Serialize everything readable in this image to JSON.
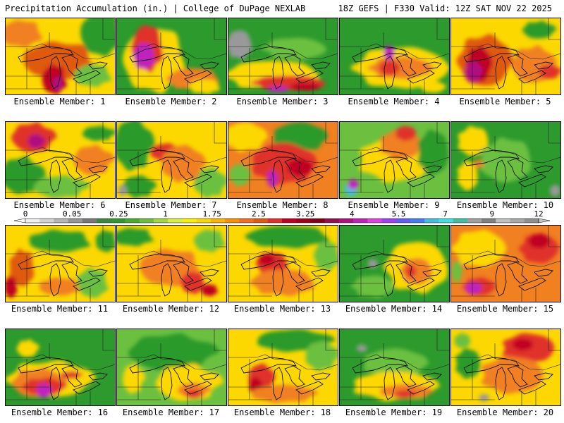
{
  "header": {
    "left": "Precipitation Accumulation (in.) | College of DuPage NEXLAB",
    "right": "18Z GEFS | F330 Valid: 12Z SAT NOV 22 2025"
  },
  "members": [
    {
      "label": "Ensemble Member: 1",
      "base": "#fcd800",
      "blobs": [
        [
          "#e05a10",
          0.5,
          0.55,
          0.35,
          0.25
        ],
        [
          "#c00020",
          0.45,
          0.8,
          0.12,
          0.2
        ],
        [
          "#b01080",
          0.48,
          0.86,
          0.05,
          0.1
        ],
        [
          "#2c9a2c",
          0.88,
          0.2,
          0.2,
          0.3
        ],
        [
          "#f08020",
          0.15,
          0.2,
          0.2,
          0.18
        ],
        [
          "#6cc040",
          0.8,
          0.75,
          0.18,
          0.15
        ]
      ]
    },
    {
      "label": "Ensemble Member: 2",
      "base": "#2c9a2c",
      "blobs": [
        [
          "#fcd800",
          0.35,
          0.55,
          0.3,
          0.45
        ],
        [
          "#e0302a",
          0.28,
          0.4,
          0.15,
          0.32
        ],
        [
          "#c020c0",
          0.25,
          0.5,
          0.1,
          0.18
        ],
        [
          "#f08020",
          0.7,
          0.8,
          0.25,
          0.15
        ],
        [
          "#fcd800",
          0.8,
          0.9,
          0.15,
          0.1
        ]
      ]
    },
    {
      "label": "Ensemble Member: 3",
      "base": "#2c9a2c",
      "blobs": [
        [
          "#999999",
          0.1,
          0.35,
          0.12,
          0.2
        ],
        [
          "#fcd800",
          0.4,
          0.75,
          0.45,
          0.2
        ],
        [
          "#e0302a",
          0.55,
          0.85,
          0.35,
          0.1
        ],
        [
          "#c00020",
          0.7,
          0.9,
          0.15,
          0.05
        ],
        [
          "#c020c0",
          0.45,
          0.93,
          0.1,
          0.04
        ],
        [
          "#6cc040",
          0.6,
          0.4,
          0.3,
          0.15
        ]
      ]
    },
    {
      "label": "Ensemble Member: 4",
      "base": "#2c9a2c",
      "blobs": [
        [
          "#fcd800",
          0.55,
          0.65,
          0.45,
          0.28
        ],
        [
          "#f08020",
          0.55,
          0.65,
          0.3,
          0.15
        ],
        [
          "#e0302a",
          0.45,
          0.65,
          0.1,
          0.1
        ],
        [
          "#c020c0",
          0.45,
          0.45,
          0.05,
          0.1
        ],
        [
          "#fcd800",
          0.85,
          0.9,
          0.12,
          0.08
        ]
      ]
    },
    {
      "label": "Ensemble Member: 5",
      "base": "#fcd800",
      "blobs": [
        [
          "#e05a10",
          0.3,
          0.55,
          0.25,
          0.35
        ],
        [
          "#c00020",
          0.25,
          0.6,
          0.12,
          0.25
        ],
        [
          "#b01080",
          0.2,
          0.7,
          0.08,
          0.15
        ],
        [
          "#f08020",
          0.75,
          0.6,
          0.2,
          0.25
        ],
        [
          "#2c9a2c",
          0.8,
          0.15,
          0.15,
          0.12
        ],
        [
          "#e0302a",
          0.9,
          0.7,
          0.1,
          0.1
        ]
      ]
    },
    {
      "label": "Ensemble Member: 6",
      "base": "#fcd800",
      "blobs": [
        [
          "#e0302a",
          0.25,
          0.2,
          0.2,
          0.2
        ],
        [
          "#b01080",
          0.28,
          0.25,
          0.08,
          0.1
        ],
        [
          "#2c9a2c",
          0.15,
          0.7,
          0.2,
          0.25
        ],
        [
          "#6cc040",
          0.5,
          0.85,
          0.25,
          0.15
        ],
        [
          "#f08020",
          0.8,
          0.5,
          0.18,
          0.2
        ],
        [
          "#2c9a2c",
          0.85,
          0.15,
          0.15,
          0.1
        ]
      ]
    },
    {
      "label": "Ensemble Member: 7",
      "base": "#fcd800",
      "blobs": [
        [
          "#2c9a2c",
          0.15,
          0.3,
          0.18,
          0.35
        ],
        [
          "#2c9a2c",
          0.2,
          0.85,
          0.15,
          0.15
        ],
        [
          "#6cc040",
          0.85,
          0.8,
          0.15,
          0.2
        ],
        [
          "#e0302a",
          0.45,
          0.4,
          0.15,
          0.12
        ],
        [
          "#f08020",
          0.6,
          0.55,
          0.2,
          0.25
        ],
        [
          "#999999",
          0.05,
          0.9,
          0.04,
          0.08
        ]
      ]
    },
    {
      "label": "Ensemble Member: 8",
      "base": "#f08020",
      "blobs": [
        [
          "#fcd800",
          0.15,
          0.2,
          0.2,
          0.2
        ],
        [
          "#2c9a2c",
          0.65,
          0.2,
          0.25,
          0.2
        ],
        [
          "#e0302a",
          0.5,
          0.55,
          0.3,
          0.28
        ],
        [
          "#c020c0",
          0.4,
          0.75,
          0.05,
          0.12
        ],
        [
          "#c00020",
          0.65,
          0.6,
          0.12,
          0.12
        ],
        [
          "#6cc040",
          0.1,
          0.7,
          0.1,
          0.15
        ]
      ]
    },
    {
      "label": "Ensemble Member: 9",
      "base": "#6cc040",
      "blobs": [
        [
          "#fcd800",
          0.5,
          0.5,
          0.35,
          0.3
        ],
        [
          "#f08020",
          0.55,
          0.3,
          0.2,
          0.2
        ],
        [
          "#e0302a",
          0.6,
          0.15,
          0.1,
          0.1
        ],
        [
          "#40c0e0",
          0.1,
          0.88,
          0.06,
          0.1
        ],
        [
          "#c020c0",
          0.12,
          0.82,
          0.05,
          0.07
        ],
        [
          "#2c9a2c",
          0.85,
          0.4,
          0.15,
          0.3
        ]
      ]
    },
    {
      "label": "Ensemble Member: 10",
      "base": "#2c9a2c",
      "blobs": [
        [
          "#fcd800",
          0.2,
          0.25,
          0.15,
          0.2
        ],
        [
          "#fcd800",
          0.15,
          0.7,
          0.1,
          0.2
        ],
        [
          "#6cc040",
          0.5,
          0.5,
          0.25,
          0.3
        ],
        [
          "#999999",
          0.95,
          0.9,
          0.05,
          0.08
        ],
        [
          "#f08020",
          0.25,
          0.55,
          0.05,
          0.06
        ]
      ]
    },
    {
      "label": "Ensemble Member: 11",
      "base": "#fcd800",
      "blobs": [
        [
          "#e05a10",
          0.15,
          0.55,
          0.12,
          0.25
        ],
        [
          "#c00020",
          0.05,
          0.8,
          0.06,
          0.15
        ],
        [
          "#2c9a2c",
          0.5,
          0.2,
          0.3,
          0.15
        ],
        [
          "#2c9a2c",
          0.92,
          0.2,
          0.1,
          0.15
        ],
        [
          "#6cc040",
          0.8,
          0.75,
          0.15,
          0.2
        ],
        [
          "#f08020",
          0.5,
          0.8,
          0.2,
          0.12
        ]
      ]
    },
    {
      "label": "Ensemble Member: 12",
      "base": "#fcd800",
      "blobs": [
        [
          "#f08020",
          0.5,
          0.55,
          0.3,
          0.25
        ],
        [
          "#e0302a",
          0.7,
          0.75,
          0.12,
          0.15
        ],
        [
          "#2c9a2c",
          0.15,
          0.15,
          0.2,
          0.12
        ],
        [
          "#6cc040",
          0.85,
          0.2,
          0.15,
          0.15
        ],
        [
          "#c00020",
          0.85,
          0.85,
          0.08,
          0.08
        ]
      ]
    },
    {
      "label": "Ensemble Member: 13",
      "base": "#fcd800",
      "blobs": [
        [
          "#2c9a2c",
          0.55,
          0.15,
          0.4,
          0.15
        ],
        [
          "#6cc040",
          0.9,
          0.4,
          0.12,
          0.2
        ],
        [
          "#e0302a",
          0.4,
          0.5,
          0.15,
          0.15
        ],
        [
          "#c00020",
          0.35,
          0.45,
          0.08,
          0.08
        ],
        [
          "#f08020",
          0.5,
          0.75,
          0.3,
          0.18
        ]
      ]
    },
    {
      "label": "Ensemble Member: 14",
      "base": "#2c9a2c",
      "blobs": [
        [
          "#fcd800",
          0.7,
          0.55,
          0.3,
          0.35
        ],
        [
          "#f08020",
          0.7,
          0.6,
          0.15,
          0.18
        ],
        [
          "#e0302a",
          0.65,
          0.6,
          0.05,
          0.08
        ],
        [
          "#6cc040",
          0.3,
          0.8,
          0.2,
          0.15
        ],
        [
          "#999999",
          0.3,
          0.5,
          0.05,
          0.06
        ]
      ]
    },
    {
      "label": "Ensemble Member: 15",
      "base": "#f08020",
      "blobs": [
        [
          "#fcd800",
          0.25,
          0.3,
          0.25,
          0.25
        ],
        [
          "#e0302a",
          0.8,
          0.3,
          0.18,
          0.2
        ],
        [
          "#c00020",
          0.8,
          0.2,
          0.1,
          0.1
        ],
        [
          "#e0302a",
          0.25,
          0.8,
          0.15,
          0.12
        ],
        [
          "#c020c0",
          0.2,
          0.82,
          0.08,
          0.08
        ],
        [
          "#6cc040",
          0.05,
          0.6,
          0.05,
          0.15
        ]
      ]
    },
    {
      "label": "Ensemble Member: 16",
      "base": "#2c9a2c",
      "blobs": [
        [
          "#fcd800",
          0.4,
          0.65,
          0.4,
          0.25
        ],
        [
          "#f08020",
          0.3,
          0.7,
          0.25,
          0.2
        ],
        [
          "#e0302a",
          0.35,
          0.75,
          0.2,
          0.12
        ],
        [
          "#c020c0",
          0.35,
          0.8,
          0.07,
          0.1
        ],
        [
          "#fcd800",
          0.2,
          0.25,
          0.1,
          0.12
        ],
        [
          "#e0302a",
          0.6,
          0.6,
          0.1,
          0.05
        ]
      ]
    },
    {
      "label": "Ensemble Member: 17",
      "base": "#6cc040",
      "blobs": [
        [
          "#2c9a2c",
          0.5,
          0.3,
          0.4,
          0.25
        ],
        [
          "#fcd800",
          0.65,
          0.7,
          0.3,
          0.25
        ],
        [
          "#f08020",
          0.7,
          0.8,
          0.15,
          0.1
        ],
        [
          "#e0302a",
          0.7,
          0.85,
          0.08,
          0.06
        ],
        [
          "#fcd800",
          0.15,
          0.65,
          0.1,
          0.2
        ]
      ]
    },
    {
      "label": "Ensemble Member: 18",
      "base": "#fcd800",
      "blobs": [
        [
          "#2c9a2c",
          0.6,
          0.15,
          0.35,
          0.15
        ],
        [
          "#6cc040",
          0.85,
          0.35,
          0.15,
          0.2
        ],
        [
          "#e0302a",
          0.3,
          0.65,
          0.12,
          0.2
        ],
        [
          "#c00020",
          0.25,
          0.75,
          0.06,
          0.12
        ],
        [
          "#f08020",
          0.5,
          0.85,
          0.3,
          0.12
        ]
      ]
    },
    {
      "label": "Ensemble Member: 19",
      "base": "#2c9a2c",
      "blobs": [
        [
          "#6cc040",
          0.5,
          0.45,
          0.3,
          0.2
        ],
        [
          "#fcd800",
          0.5,
          0.75,
          0.4,
          0.2
        ],
        [
          "#f08020",
          0.6,
          0.82,
          0.25,
          0.1
        ],
        [
          "#e0302a",
          0.6,
          0.85,
          0.1,
          0.05
        ],
        [
          "#999999",
          0.2,
          0.25,
          0.05,
          0.05
        ]
      ]
    },
    {
      "label": "Ensemble Member: 20",
      "base": "#fcd800",
      "blobs": [
        [
          "#e0302a",
          0.7,
          0.25,
          0.25,
          0.2
        ],
        [
          "#c00020",
          0.65,
          0.2,
          0.1,
          0.08
        ],
        [
          "#f08020",
          0.55,
          0.6,
          0.3,
          0.25
        ],
        [
          "#2c9a2c",
          0.15,
          0.45,
          0.12,
          0.2
        ],
        [
          "#6cc040",
          0.1,
          0.15,
          0.08,
          0.1
        ],
        [
          "#999999",
          0.3,
          0.9,
          0.05,
          0.05
        ]
      ]
    }
  ],
  "colorbar": {
    "labels": [
      "0",
      "0.05",
      "0.25",
      "1",
      "1.75",
      "2.5",
      "3.25",
      "4",
      "5.5",
      "7",
      "9",
      "12"
    ],
    "colors": [
      "#f0f0f0",
      "#d2d2d2",
      "#b4b4b4",
      "#969696",
      "#787878",
      "#3a8a3a",
      "#2c9a2c",
      "#4aaa2a",
      "#6cc040",
      "#a0d840",
      "#d8f040",
      "#fcf000",
      "#fcd800",
      "#fcb400",
      "#f89000",
      "#f07020",
      "#e05a10",
      "#e0302a",
      "#c00020",
      "#a00018",
      "#800018",
      "#901050",
      "#b01080",
      "#c020c0",
      "#e040e0",
      "#a040f0",
      "#6060f0",
      "#4080f0",
      "#40c0e0",
      "#40e0e0",
      "#40c0a0",
      "#a0a0a0",
      "#808080",
      "#c0c0c0",
      "#a8a8a8",
      "#909090"
    ]
  }
}
